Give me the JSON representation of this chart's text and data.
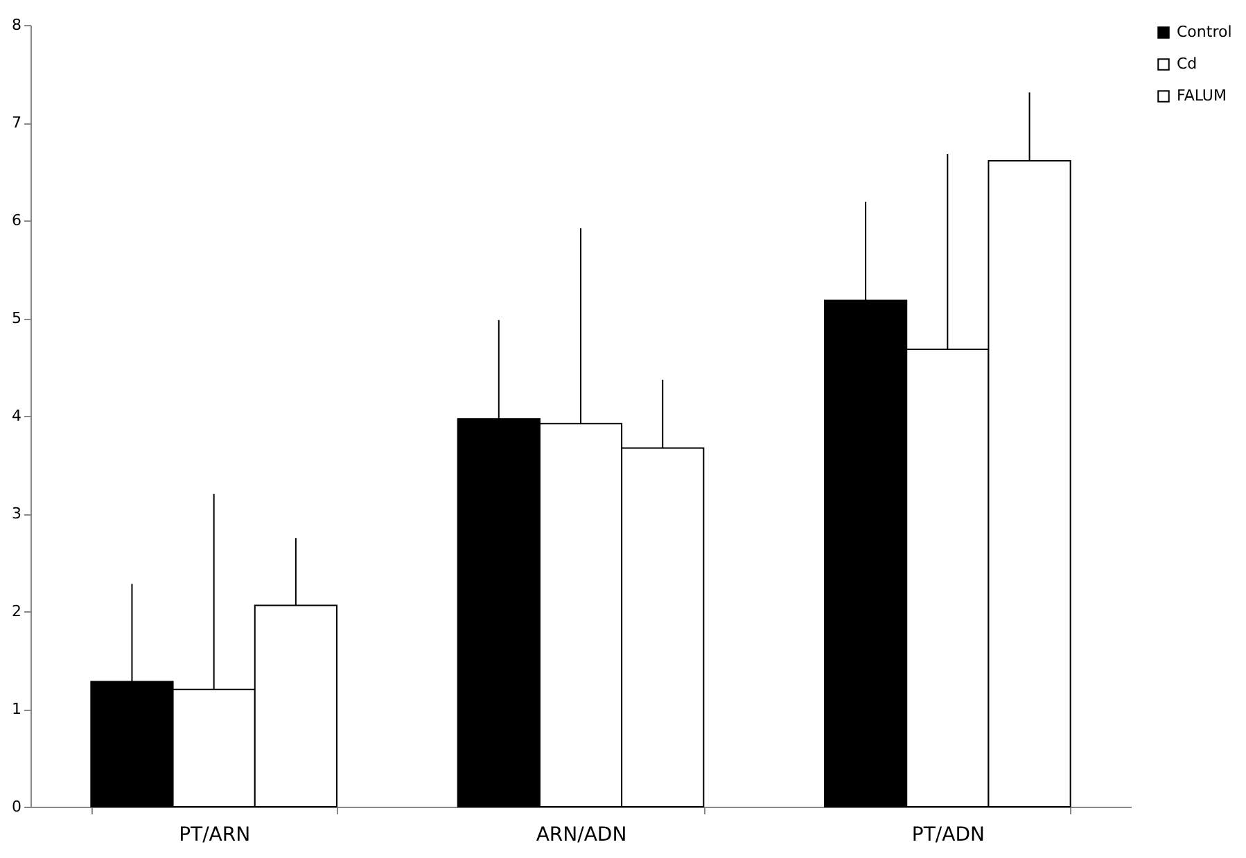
{
  "chart_data": {
    "type": "bar",
    "categories": [
      "PT/ARN",
      "ARN/ADN",
      "PT/ADN"
    ],
    "series": [
      {
        "name": "Control",
        "color": "#000000",
        "values": [
          1.28,
          3.97,
          5.18
        ],
        "errors": [
          [
            1.28,
            2.28
          ],
          [
            3.97,
            4.98
          ],
          [
            5.18,
            6.19
          ]
        ]
      },
      {
        "name": "Cd",
        "color": "#ffffff",
        "values": [
          1.2,
          3.92,
          4.68
        ],
        "errors": [
          [
            1.2,
            3.2
          ],
          [
            3.92,
            5.92
          ],
          [
            4.68,
            6.68
          ]
        ]
      },
      {
        "name": "FALUM",
        "color": "#ffffff",
        "values": [
          2.06,
          3.67,
          6.61
        ],
        "errors": [
          [
            2.06,
            2.75
          ],
          [
            3.67,
            4.37
          ],
          [
            6.61,
            7.31
          ]
        ]
      }
    ],
    "ylim": [
      0,
      8
    ],
    "yticks": [
      0,
      1,
      2,
      3,
      4,
      5,
      6,
      7,
      8
    ],
    "grid": false,
    "legend": "right"
  }
}
